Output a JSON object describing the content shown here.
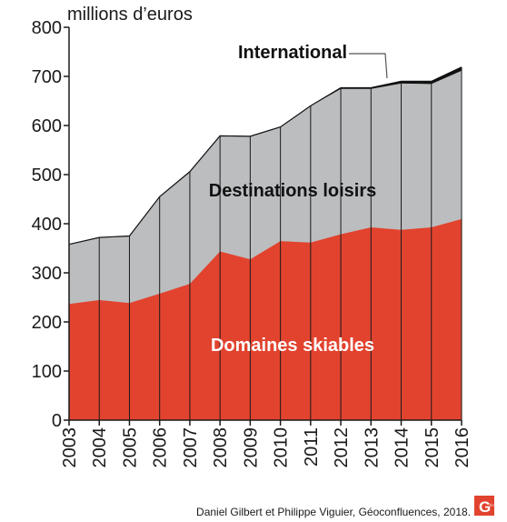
{
  "chart_data": {
    "type": "area",
    "stacked": true,
    "ylabel": "millions d’euros",
    "xlabel": "",
    "ylim": [
      0,
      800
    ],
    "yticks": [
      0,
      100,
      200,
      300,
      400,
      500,
      600,
      700,
      800
    ],
    "x": [
      "2003",
      "2004",
      "2005",
      "2006",
      "2007",
      "2008",
      "2009",
      "2010",
      "2011",
      "2012",
      "2013",
      "2014",
      "2015",
      "2016"
    ],
    "series": [
      {
        "name": "Domaines skiables",
        "color": "#e2432e",
        "values": [
          237,
          245,
          239,
          258,
          278,
          344,
          328,
          365,
          362,
          379,
          393,
          388,
          393,
          410
        ]
      },
      {
        "name": "Destinations loisirs",
        "color": "#bbbdbf",
        "values": [
          121,
          127,
          136,
          197,
          228,
          235,
          250,
          232,
          278,
          296,
          282,
          298,
          292,
          302
        ]
      },
      {
        "name": "International",
        "color": "#111111",
        "values": [
          0,
          0,
          0,
          0,
          0,
          0,
          0,
          0,
          0,
          2,
          2,
          4,
          5,
          7
        ]
      }
    ],
    "grid": false,
    "source": "Daniel Gilbert et Philippe Viguier, Géoconfluences, 2018."
  },
  "logo": {
    "text": "GÉO CONFLUENCES",
    "color": "#e2432e"
  }
}
